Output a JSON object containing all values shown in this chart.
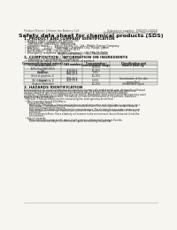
{
  "bg_color": "#f0ede8",
  "page_bg": "#f7f5f0",
  "title": "Safety data sheet for chemical products (SDS)",
  "header_left": "Product Name: Lithium Ion Battery Cell",
  "header_right_line1": "Substance number: 1N6300-00018",
  "header_right_line2": "Establishment / Revision: Dec.7.2010",
  "section1_title": "1. PRODUCT AND COMPANY IDENTIFICATION",
  "section1_lines": [
    " • Product name: Lithium Ion Battery Cell",
    " • Product code: Cylindrical-type cell",
    "     IHR18650J, IHR18650L, IHR18650A",
    " • Company name:      Sanyo Electric Co., Ltd., Mobile Energy Company",
    " • Address:      2-20-1  Kannondori, Sunonshi City, Hyogo, Japan",
    " • Telephone number:    +81-798-20-4111",
    " • Fax number:   +81-798-20-4129",
    " • Emergency telephone number (daytime): +81-798-20-3642",
    "                                      (Night and holiday): +81-798-20-4101"
  ],
  "section2_title": "2. COMPOSITION / INFORMATION ON INGREDIENTS",
  "section2_intro": "  • Substance or preparation: Preparation",
  "section2_sub": "  • Information about the chemical nature of product:",
  "table_col0_header1": "Component(chemical nature)",
  "table_col0_header2": "Several name",
  "table_col1_header": "CAS number",
  "table_col2_header1": "Concentration /",
  "table_col2_header2": "Concentration range",
  "table_col3_header1": "Classification and",
  "table_col3_header2": "hazard labeling",
  "table_rows": [
    [
      "Lithium oxide tantalate\n(LiMn2Co1/3Ni1/3O2)",
      "-",
      "30-60%",
      "-"
    ],
    [
      "Iron",
      "7439-89-6",
      "10-20%",
      "-"
    ],
    [
      "Aluminum",
      "7429-90-5",
      "2-5%",
      "-"
    ],
    [
      "Graphite\n(Kind of graphite-1)\n(All-the graphite-2)",
      "7782-42-5\n7782-44-2",
      "10-25%",
      "-"
    ],
    [
      "Copper",
      "7440-50-8",
      "5-15%",
      "Sensitization of the skin\ngroup No.2"
    ],
    [
      "Organic electrolyte",
      "-",
      "10-20%",
      "Inflammable liquid"
    ]
  ],
  "section3_title": "3. HAZARDS IDENTIFICATION",
  "section3_lines": [
    "For the battery cell, chemical materials are stored in a hermetically sealed metal case, designed to withstand",
    "temperatures by pressure-equalization during normal use. As a result, during normal use, there is no",
    "physical danger of ignition or explosion and therefore danger of hazardous materials leakage.",
    "  However, if exposed to a fire added mechanical shocks, decompose, when electro whilst moisture may cause",
    "the gas release cannot be operated. The battery cell case will be breached of fire-portions, hazardous",
    "materials may be released.",
    "  Moreover, if heated strongly by the surrounding fire, some gas may be emitted.",
    "",
    "  • Most important hazard and effects:",
    "      Human health effects:",
    "        Inhalation: The steam of the electrolyte has an anesthesia action and stimulates in respiratory tract.",
    "        Skin contact: The steam of the electrolyte stimulates a skin. The electrolyte skin contact causes a",
    "        sore and stimulation on the skin.",
    "        Eye contact: The steam of the electrolyte stimulates eyes. The electrolyte eye contact causes a sore",
    "        and stimulation on the eye. Especially, a substance that causes a strong inflammation of the eye is",
    "        contained.",
    "        Environmental effects: Since a battery cell remains in the environment, do not throw out it into the",
    "        environment.",
    "",
    "  • Specific hazards:",
    "        If the electrolyte contacts with water, it will generate detrimental hydrogen fluoride.",
    "        Since the main electrolyte is inflammable liquid, do not bring close to fire."
  ]
}
